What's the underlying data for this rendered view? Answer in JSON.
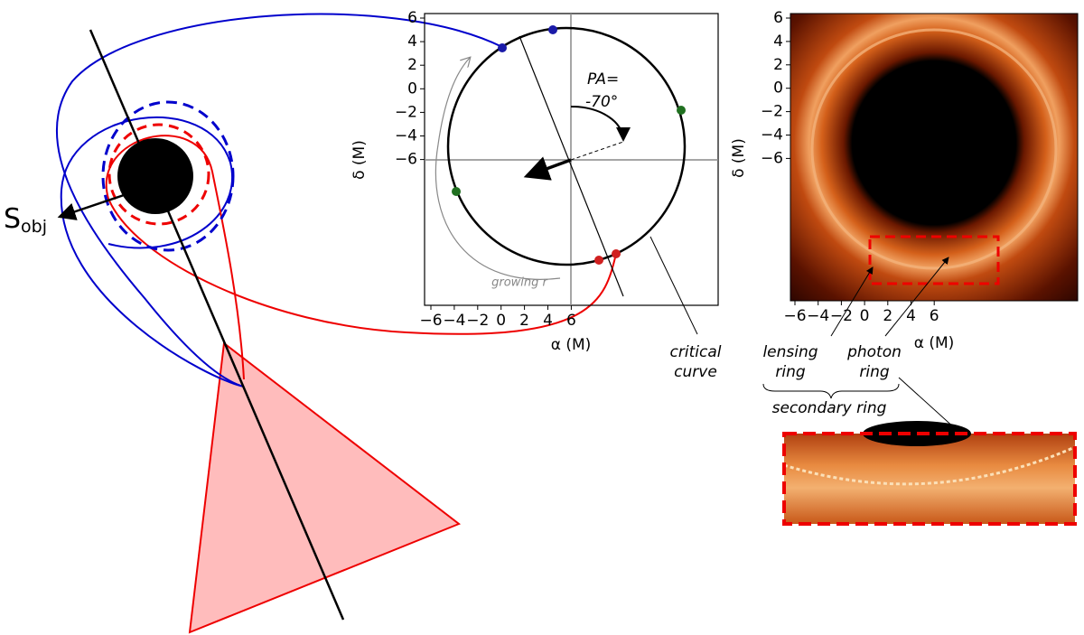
{
  "left": {
    "source_main": "S",
    "source_sub": "obj"
  },
  "middle": {
    "xlabel": "α (M)",
    "ylabel": "δ (M)",
    "xticks": [
      "−6",
      "−4",
      "−2",
      "0",
      "2",
      "4",
      "6"
    ],
    "yticks": [
      "6",
      "4",
      "2",
      "0",
      "−2",
      "−4",
      "−6"
    ],
    "pa_label": "PA=",
    "pa_value": "-70°",
    "growing": "growing r",
    "critical": [
      "critical",
      "curve"
    ]
  },
  "right": {
    "xlabel": "α (M)",
    "ylabel": "δ (M)",
    "xticks": [
      "−6",
      "−4",
      "−2",
      "0",
      "2",
      "4",
      "6"
    ],
    "yticks": [
      "6",
      "4",
      "2",
      "0",
      "−2",
      "−4",
      "−6"
    ],
    "lensing": [
      "lensing",
      "ring"
    ],
    "photon": [
      "photon",
      "ring"
    ],
    "secondary": "secondary ring"
  }
}
